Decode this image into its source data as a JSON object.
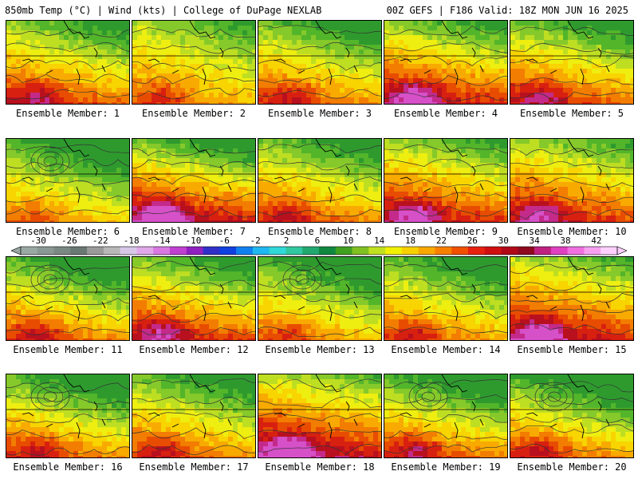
{
  "header": {
    "left": "850mb Temp (°C) | Wind (kts) | College of DuPage NEXLAB",
    "right": "00Z GEFS | F186 Valid: 18Z MON JUN 16 2025"
  },
  "member_prefix": "Ensemble Member: ",
  "members": [
    {
      "label": "Ensemble Member: 1",
      "warm": 0.62,
      "cold": 0.35
    },
    {
      "label": "Ensemble Member: 2",
      "warm": 0.45,
      "cold": 0.2
    },
    {
      "label": "Ensemble Member: 3",
      "warm": 0.55,
      "cold": 0.45
    },
    {
      "label": "Ensemble Member: 4",
      "warm": 0.78,
      "cold": 0.3
    },
    {
      "label": "Ensemble Member: 5",
      "warm": 0.65,
      "cold": 0.4
    },
    {
      "label": "Ensemble Member: 6",
      "warm": 0.4,
      "cold": 0.6
    },
    {
      "label": "Ensemble Member: 7",
      "warm": 0.85,
      "cold": 0.45
    },
    {
      "label": "Ensemble Member: 8",
      "warm": 0.55,
      "cold": 0.4
    },
    {
      "label": "Ensemble Member: 9",
      "warm": 0.75,
      "cold": 0.25
    },
    {
      "label": "Ensemble Member: 10",
      "warm": 0.72,
      "cold": 0.2
    },
    {
      "label": "Ensemble Member: 11",
      "warm": 0.55,
      "cold": 0.55
    },
    {
      "label": "Ensemble Member: 12",
      "warm": 0.7,
      "cold": 0.4
    },
    {
      "label": "Ensemble Member: 13",
      "warm": 0.45,
      "cold": 0.6
    },
    {
      "label": "Ensemble Member: 14",
      "warm": 0.5,
      "cold": 0.5
    },
    {
      "label": "Ensemble Member: 15",
      "warm": 0.8,
      "cold": 0.15
    },
    {
      "label": "Ensemble Member: 16",
      "warm": 0.55,
      "cold": 0.55
    },
    {
      "label": "Ensemble Member: 17",
      "warm": 0.55,
      "cold": 0.45
    },
    {
      "label": "Ensemble Member: 18",
      "warm": 0.88,
      "cold": 0.1
    },
    {
      "label": "Ensemble Member: 19",
      "warm": 0.6,
      "cold": 0.6
    },
    {
      "label": "Ensemble Member: 20",
      "warm": 0.55,
      "cold": 0.65
    }
  ],
  "colorbar": {
    "labels": [
      "-30",
      "-26",
      "-22",
      "-18",
      "-14",
      "-10",
      "-6",
      "-2",
      "2",
      "6",
      "10",
      "14",
      "18",
      "22",
      "26",
      "30",
      "34",
      "38",
      "42"
    ],
    "colors": [
      "#9aa8a4",
      "#8a9894",
      "#7a8884",
      "#6a7874",
      "#9a9a9a",
      "#b8b8b8",
      "#d8c8e8",
      "#e0a8e8",
      "#d878e0",
      "#c040d0",
      "#9020c0",
      "#3030c8",
      "#1040e0",
      "#1080f0",
      "#20b8f0",
      "#30d8d8",
      "#30c8a0",
      "#20a870",
      "#108840",
      "#40a020",
      "#80c020",
      "#c0e020",
      "#f0f000",
      "#f8d000",
      "#f8a800",
      "#f88000",
      "#f05000",
      "#e82010",
      "#d01010",
      "#b00818",
      "#900820",
      "#c02080",
      "#e040c0",
      "#f070e0",
      "#f8a0f0",
      "#ffd0ff"
    ],
    "unit": "°C"
  }
}
